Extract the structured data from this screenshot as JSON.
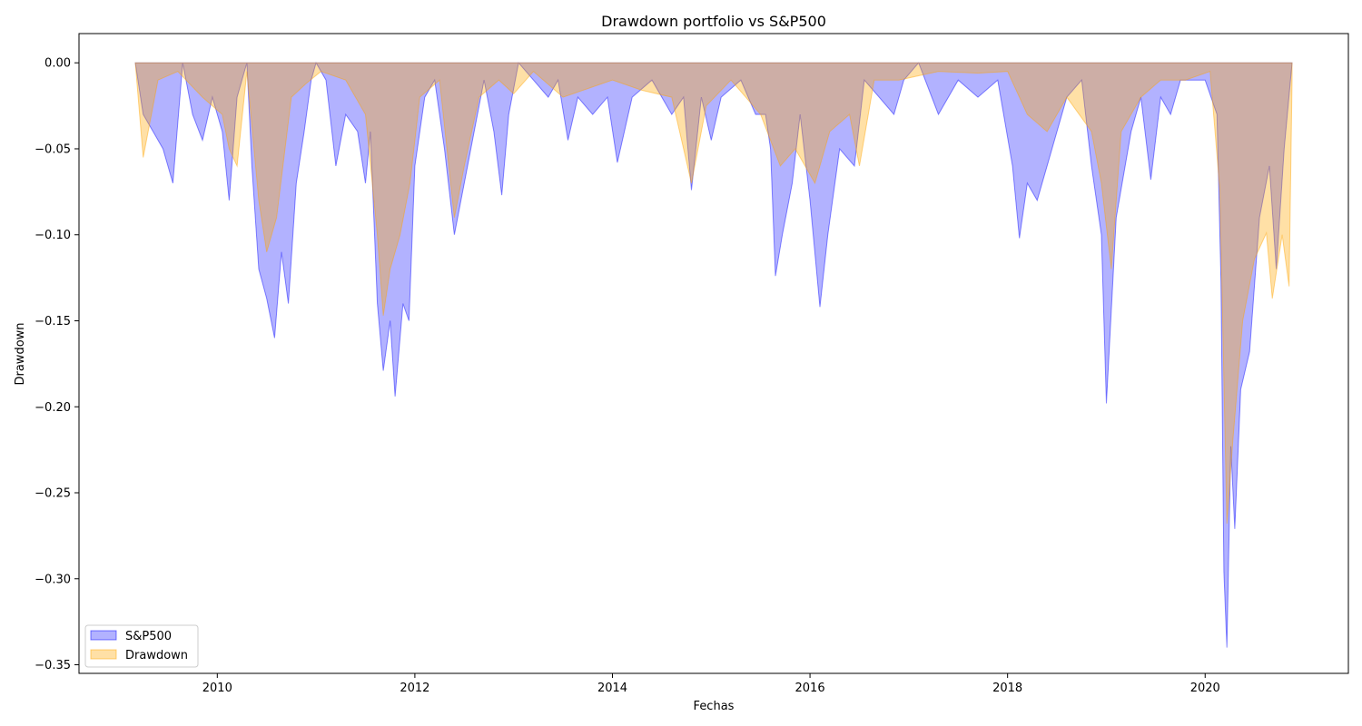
{
  "chart_data": {
    "type": "area",
    "title": "Drawdown portfolio vs S&P500",
    "xlabel": "Fechas",
    "ylabel": "Drawdown",
    "xlim": [
      2008.6,
      2021.45
    ],
    "ylim": [
      -0.355,
      0.017
    ],
    "x_ticks": [
      2010,
      2012,
      2014,
      2016,
      2018,
      2020
    ],
    "x_tick_labels": [
      "2010",
      "2012",
      "2014",
      "2016",
      "2018",
      "2020"
    ],
    "y_ticks": [
      0.0,
      -0.05,
      -0.1,
      -0.15,
      -0.2,
      -0.25,
      -0.3,
      -0.35
    ],
    "y_tick_labels": [
      "0.00",
      "−0.05",
      "−0.10",
      "−0.15",
      "−0.20",
      "−0.25",
      "−0.30",
      "−0.35"
    ],
    "grid": false,
    "legend_position": "lower-left",
    "series": [
      {
        "name": "S&P500",
        "color": "#0000ff",
        "fill_opacity": 0.3,
        "points": [
          [
            2009.17,
            0.0
          ],
          [
            2009.25,
            -0.03
          ],
          [
            2009.35,
            -0.04
          ],
          [
            2009.45,
            -0.05
          ],
          [
            2009.55,
            -0.07
          ],
          [
            2009.65,
            0.0
          ],
          [
            2009.75,
            -0.03
          ],
          [
            2009.85,
            -0.045
          ],
          [
            2009.95,
            -0.02
          ],
          [
            2010.05,
            -0.04
          ],
          [
            2010.12,
            -0.08
          ],
          [
            2010.2,
            -0.02
          ],
          [
            2010.3,
            0.0
          ],
          [
            2010.35,
            -0.06
          ],
          [
            2010.42,
            -0.12
          ],
          [
            2010.5,
            -0.137
          ],
          [
            2010.58,
            -0.16
          ],
          [
            2010.65,
            -0.11
          ],
          [
            2010.72,
            -0.14
          ],
          [
            2010.8,
            -0.07
          ],
          [
            2010.88,
            -0.04
          ],
          [
            2010.95,
            -0.01
          ],
          [
            2011.0,
            0.0
          ],
          [
            2011.1,
            -0.01
          ],
          [
            2011.2,
            -0.06
          ],
          [
            2011.3,
            -0.03
          ],
          [
            2011.42,
            -0.04
          ],
          [
            2011.5,
            -0.07
          ],
          [
            2011.55,
            -0.04
          ],
          [
            2011.62,
            -0.14
          ],
          [
            2011.68,
            -0.179
          ],
          [
            2011.75,
            -0.15
          ],
          [
            2011.8,
            -0.194
          ],
          [
            2011.88,
            -0.14
          ],
          [
            2011.94,
            -0.15
          ],
          [
            2012.0,
            -0.06
          ],
          [
            2012.1,
            -0.02
          ],
          [
            2012.2,
            -0.01
          ],
          [
            2012.3,
            -0.05
          ],
          [
            2012.4,
            -0.1
          ],
          [
            2012.5,
            -0.07
          ],
          [
            2012.6,
            -0.04
          ],
          [
            2012.7,
            -0.01
          ],
          [
            2012.8,
            -0.04
          ],
          [
            2012.88,
            -0.077
          ],
          [
            2012.95,
            -0.03
          ],
          [
            2013.05,
            0.0
          ],
          [
            2013.2,
            -0.01
          ],
          [
            2013.35,
            -0.02
          ],
          [
            2013.45,
            -0.01
          ],
          [
            2013.55,
            -0.045
          ],
          [
            2013.65,
            -0.02
          ],
          [
            2013.8,
            -0.03
          ],
          [
            2013.95,
            -0.02
          ],
          [
            2014.05,
            -0.058
          ],
          [
            2014.2,
            -0.02
          ],
          [
            2014.4,
            -0.01
          ],
          [
            2014.6,
            -0.03
          ],
          [
            2014.72,
            -0.02
          ],
          [
            2014.8,
            -0.074
          ],
          [
            2014.9,
            -0.02
          ],
          [
            2015.0,
            -0.045
          ],
          [
            2015.1,
            -0.02
          ],
          [
            2015.3,
            -0.01
          ],
          [
            2015.45,
            -0.03
          ],
          [
            2015.55,
            -0.03
          ],
          [
            2015.6,
            -0.05
          ],
          [
            2015.65,
            -0.124
          ],
          [
            2015.72,
            -0.1
          ],
          [
            2015.82,
            -0.07
          ],
          [
            2015.9,
            -0.03
          ],
          [
            2016.0,
            -0.08
          ],
          [
            2016.1,
            -0.142
          ],
          [
            2016.18,
            -0.1
          ],
          [
            2016.3,
            -0.05
          ],
          [
            2016.45,
            -0.06
          ],
          [
            2016.55,
            -0.01
          ],
          [
            2016.7,
            -0.02
          ],
          [
            2016.85,
            -0.03
          ],
          [
            2016.95,
            -0.01
          ],
          [
            2017.1,
            0.0
          ],
          [
            2017.3,
            -0.03
          ],
          [
            2017.5,
            -0.01
          ],
          [
            2017.7,
            -0.02
          ],
          [
            2017.9,
            -0.01
          ],
          [
            2018.05,
            -0.06
          ],
          [
            2018.12,
            -0.102
          ],
          [
            2018.2,
            -0.07
          ],
          [
            2018.3,
            -0.08
          ],
          [
            2018.45,
            -0.05
          ],
          [
            2018.6,
            -0.02
          ],
          [
            2018.75,
            -0.01
          ],
          [
            2018.85,
            -0.06
          ],
          [
            2018.95,
            -0.1
          ],
          [
            2019.0,
            -0.198
          ],
          [
            2019.1,
            -0.09
          ],
          [
            2019.25,
            -0.04
          ],
          [
            2019.35,
            -0.02
          ],
          [
            2019.45,
            -0.068
          ],
          [
            2019.55,
            -0.02
          ],
          [
            2019.65,
            -0.03
          ],
          [
            2019.75,
            -0.01
          ],
          [
            2019.9,
            -0.01
          ],
          [
            2020.0,
            -0.01
          ],
          [
            2020.12,
            -0.03
          ],
          [
            2020.16,
            -0.127
          ],
          [
            2020.19,
            -0.296
          ],
          [
            2020.22,
            -0.34
          ],
          [
            2020.26,
            -0.223
          ],
          [
            2020.3,
            -0.271
          ],
          [
            2020.36,
            -0.19
          ],
          [
            2020.45,
            -0.168
          ],
          [
            2020.55,
            -0.09
          ],
          [
            2020.65,
            -0.06
          ],
          [
            2020.72,
            -0.12
          ],
          [
            2020.8,
            -0.05
          ],
          [
            2020.88,
            0.0
          ]
        ]
      },
      {
        "name": "Drawdown",
        "color": "#ffa500",
        "fill_opacity": 0.35,
        "points": [
          [
            2009.17,
            0.0
          ],
          [
            2009.25,
            -0.055
          ],
          [
            2009.4,
            -0.01
          ],
          [
            2009.6,
            -0.005
          ],
          [
            2009.85,
            -0.02
          ],
          [
            2010.05,
            -0.03
          ],
          [
            2010.12,
            -0.05
          ],
          [
            2010.2,
            -0.06
          ],
          [
            2010.3,
            -0.005
          ],
          [
            2010.42,
            -0.08
          ],
          [
            2010.5,
            -0.11
          ],
          [
            2010.6,
            -0.09
          ],
          [
            2010.75,
            -0.02
          ],
          [
            2010.9,
            -0.012
          ],
          [
            2011.05,
            -0.005
          ],
          [
            2011.3,
            -0.01
          ],
          [
            2011.5,
            -0.03
          ],
          [
            2011.62,
            -0.1
          ],
          [
            2011.68,
            -0.147
          ],
          [
            2011.75,
            -0.12
          ],
          [
            2011.85,
            -0.1
          ],
          [
            2011.95,
            -0.07
          ],
          [
            2012.05,
            -0.02
          ],
          [
            2012.25,
            -0.01
          ],
          [
            2012.4,
            -0.09
          ],
          [
            2012.5,
            -0.06
          ],
          [
            2012.65,
            -0.02
          ],
          [
            2012.85,
            -0.01
          ],
          [
            2013.0,
            -0.018
          ],
          [
            2013.2,
            -0.005
          ],
          [
            2013.5,
            -0.02
          ],
          [
            2013.75,
            -0.015
          ],
          [
            2014.0,
            -0.01
          ],
          [
            2014.3,
            -0.016
          ],
          [
            2014.6,
            -0.02
          ],
          [
            2014.8,
            -0.07
          ],
          [
            2014.95,
            -0.025
          ],
          [
            2015.2,
            -0.01
          ],
          [
            2015.5,
            -0.03
          ],
          [
            2015.7,
            -0.06
          ],
          [
            2015.85,
            -0.05
          ],
          [
            2016.05,
            -0.07
          ],
          [
            2016.2,
            -0.04
          ],
          [
            2016.4,
            -0.03
          ],
          [
            2016.5,
            -0.06
          ],
          [
            2016.65,
            -0.01
          ],
          [
            2016.9,
            -0.01
          ],
          [
            2017.3,
            -0.005
          ],
          [
            2017.7,
            -0.006
          ],
          [
            2018.0,
            -0.005
          ],
          [
            2018.2,
            -0.03
          ],
          [
            2018.4,
            -0.04
          ],
          [
            2018.6,
            -0.02
          ],
          [
            2018.85,
            -0.04
          ],
          [
            2018.95,
            -0.07
          ],
          [
            2019.05,
            -0.12
          ],
          [
            2019.15,
            -0.04
          ],
          [
            2019.35,
            -0.02
          ],
          [
            2019.55,
            -0.01
          ],
          [
            2019.8,
            -0.01
          ],
          [
            2020.05,
            -0.005
          ],
          [
            2020.15,
            -0.075
          ],
          [
            2020.22,
            -0.268
          ],
          [
            2020.28,
            -0.22
          ],
          [
            2020.38,
            -0.15
          ],
          [
            2020.5,
            -0.114
          ],
          [
            2020.62,
            -0.099
          ],
          [
            2020.68,
            -0.137
          ],
          [
            2020.78,
            -0.1
          ],
          [
            2020.85,
            -0.13
          ],
          [
            2020.88,
            -0.01
          ]
        ]
      }
    ]
  }
}
